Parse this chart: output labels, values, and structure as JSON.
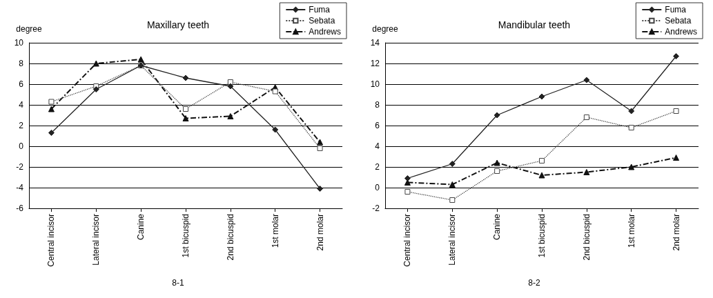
{
  "chart_data": [
    {
      "type": "line",
      "title": "Maxillary teeth",
      "ylabel": "degree",
      "categories": [
        "Central incisor",
        "Lateral incisor",
        "Canine",
        "1st bicuspid",
        "2nd bicuspid",
        "1st molar",
        "2nd molar"
      ],
      "series": [
        {
          "name": "Fuma",
          "color": "#222222",
          "marker": "diamond",
          "line_style": "solid",
          "values": [
            1.3,
            5.5,
            7.8,
            6.6,
            5.8,
            1.6,
            -4.1
          ]
        },
        {
          "name": "Sebata",
          "color": "#444444",
          "marker": "square",
          "line_style": "dotted",
          "values": [
            4.3,
            5.8,
            7.8,
            3.6,
            6.2,
            5.3,
            -0.2
          ]
        },
        {
          "name": "Andrews",
          "color": "#111111",
          "marker": "triangle",
          "line_style": "dashed",
          "values": [
            3.6,
            8.0,
            8.4,
            2.7,
            2.9,
            5.7,
            0.4
          ]
        }
      ],
      "ylim": [
        -6,
        10
      ],
      "yticks": [
        -6,
        -4,
        -2,
        0,
        2,
        4,
        6,
        8,
        10
      ],
      "grid": "y",
      "legend": "top right",
      "annotations": [
        "8-1"
      ]
    },
    {
      "type": "line",
      "title": "Mandibular teeth",
      "ylabel": "degree",
      "categories": [
        "Central incisor",
        "Lateral incisor",
        "Canine",
        "1st bicuspid",
        "2nd bicuspid",
        "1st molar",
        "2nd molar"
      ],
      "series": [
        {
          "name": "Fuma",
          "color": "#222222",
          "marker": "diamond",
          "line_style": "solid",
          "values": [
            0.9,
            2.3,
            7.0,
            8.8,
            10.4,
            7.4,
            12.7
          ]
        },
        {
          "name": "Sebata",
          "color": "#444444",
          "marker": "square",
          "line_style": "dotted",
          "values": [
            -0.4,
            -1.2,
            1.6,
            2.6,
            6.8,
            5.8,
            7.4
          ]
        },
        {
          "name": "Andrews",
          "color": "#111111",
          "marker": "triangle",
          "line_style": "dashed",
          "values": [
            0.5,
            0.3,
            2.4,
            1.2,
            1.5,
            2.0,
            2.9
          ]
        }
      ],
      "ylim": [
        -2,
        14
      ],
      "yticks": [
        -2,
        0,
        2,
        4,
        6,
        8,
        10,
        12,
        14
      ],
      "grid": "y",
      "legend": "top right",
      "annotations": [
        "8-2"
      ]
    }
  ]
}
